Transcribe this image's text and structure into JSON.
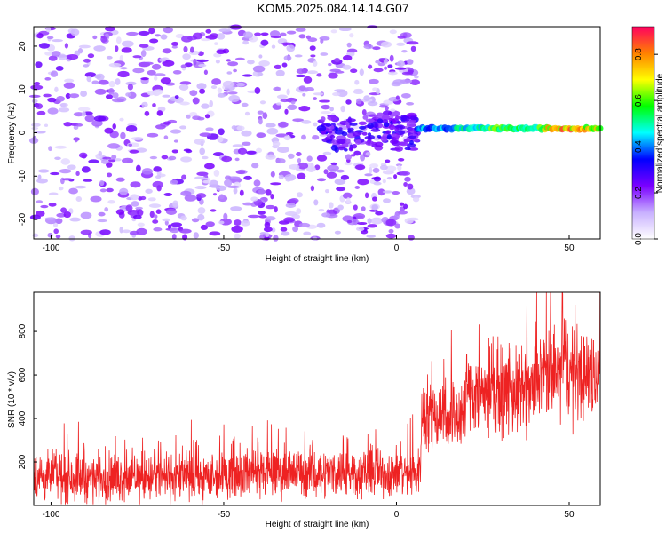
{
  "title": "KOM5.2025.084.14.14.G07",
  "chart_data": [
    {
      "type": "heatmap",
      "xlabel": "Height of straight line (km)",
      "ylabel": "Frequency (Hz)",
      "xlim": [
        -105,
        59
      ],
      "ylim": [
        -24.5,
        24.5
      ],
      "x_ticks": [
        -100,
        -50,
        0,
        50
      ],
      "y_ticks": [
        -20,
        -10,
        0,
        10,
        20
      ],
      "colorbar": {
        "label": "Normalized spectral amplitude",
        "range": [
          0,
          0.92
        ],
        "ticks": [
          0,
          0.2,
          0.4,
          0.6,
          0.8
        ],
        "colors": [
          "#ffffff",
          "#c8b0ff",
          "#7a00ff",
          "#0000ff",
          "#00ffff",
          "#00ff00",
          "#ffff00",
          "#ff8000",
          "#ff0060"
        ]
      },
      "features": {
        "scatter_region_x": [
          -105,
          6
        ],
        "scatter_amplitude": [
          0.05,
          0.25
        ],
        "transition_x": [
          -22,
          6
        ],
        "transition_amplitude": 0.3,
        "line_start_x": 6,
        "line_frequency_hz": 1,
        "line_amplitude_range": [
          0.45,
          0.9
        ],
        "line_points": [
          [
            6,
            0.5
          ],
          [
            10,
            0.45
          ],
          [
            15,
            0.5
          ],
          [
            20,
            0.55
          ],
          [
            25,
            0.6
          ],
          [
            30,
            0.7
          ],
          [
            35,
            0.6
          ],
          [
            40,
            0.6
          ],
          [
            45,
            0.85
          ],
          [
            50,
            0.9
          ],
          [
            55,
            0.8
          ],
          [
            59,
            0.75
          ]
        ]
      }
    },
    {
      "type": "line",
      "xlabel": "Height of straight line (km)",
      "ylabel": "SNR (10 * v/v)",
      "xlim": [
        -105,
        59
      ],
      "ylim": [
        0,
        980
      ],
      "x_ticks": [
        -100,
        -50,
        0,
        50
      ],
      "y_ticks": [
        200,
        400,
        600,
        800
      ],
      "color": "#ee2222",
      "segments": [
        {
          "x": [
            -105,
            -50
          ],
          "mean": 130,
          "noise": 90
        },
        {
          "x": [
            -50,
            7
          ],
          "mean": 150,
          "noise": 90
        },
        {
          "x": [
            7,
            20
          ],
          "mean": 420,
          "noise": 140
        },
        {
          "x": [
            20,
            40
          ],
          "mean": 520,
          "noise": 160
        },
        {
          "x": [
            40,
            59
          ],
          "mean": 600,
          "noise": 170
        }
      ],
      "peak": {
        "x": 48,
        "y": 980
      }
    }
  ]
}
